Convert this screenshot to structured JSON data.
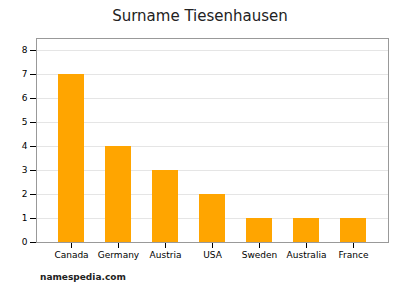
{
  "chart_data": {
    "type": "bar",
    "title": "Surname Tiesenhausen",
    "categories": [
      "Canada",
      "Germany",
      "Austria",
      "USA",
      "Sweden",
      "Australia",
      "France"
    ],
    "values": [
      7,
      4,
      3,
      2,
      1,
      1,
      1
    ],
    "color": "#FFA500",
    "ylim": [
      0,
      8.5
    ],
    "yticks": [
      0,
      1,
      2,
      3,
      4,
      5,
      6,
      7,
      8
    ],
    "grid": true,
    "annotations": [
      "namespedia.com"
    ]
  }
}
